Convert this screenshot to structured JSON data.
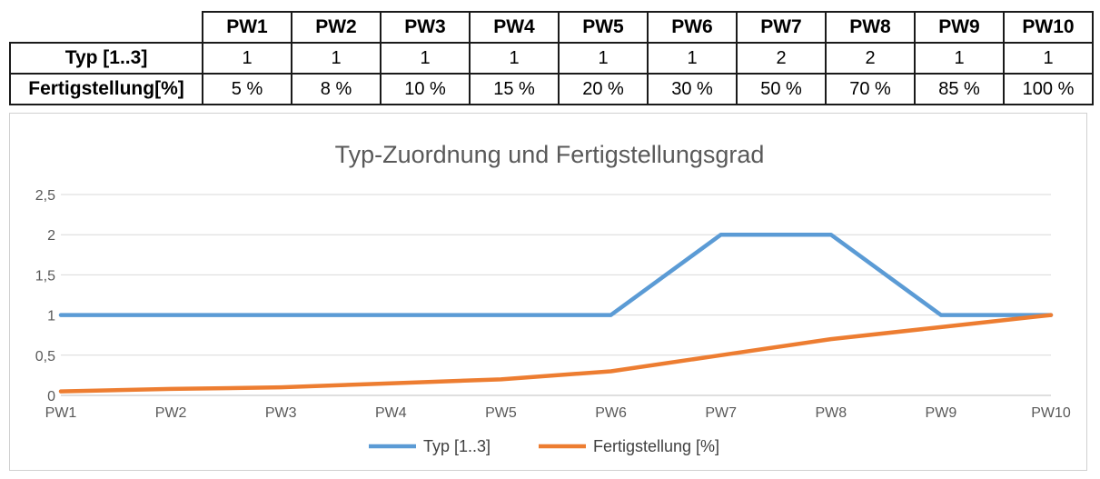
{
  "table": {
    "headers": [
      "PW1",
      "PW2",
      "PW3",
      "PW4",
      "PW5",
      "PW6",
      "PW7",
      "PW8",
      "PW9",
      "PW10"
    ],
    "rows": [
      {
        "label": "Typ [1..3]",
        "cells": [
          "1",
          "1",
          "1",
          "1",
          "1",
          "1",
          "2",
          "2",
          "1",
          "1"
        ]
      },
      {
        "label": "Fertigstellung[%]",
        "cells": [
          "5 %",
          "8 %",
          "10 %",
          "15 %",
          "20 %",
          "30 %",
          "50 %",
          "70 %",
          "85 %",
          "100 %"
        ]
      }
    ]
  },
  "chart_data": {
    "type": "line",
    "title": "Typ-Zuordnung und Fertigstellungsgrad",
    "categories": [
      "PW1",
      "PW2",
      "PW3",
      "PW4",
      "PW5",
      "PW6",
      "PW7",
      "PW8",
      "PW9",
      "PW10"
    ],
    "series": [
      {
        "name": "Typ [1..3]",
        "color": "#5b9bd5",
        "values": [
          1,
          1,
          1,
          1,
          1,
          1,
          2,
          2,
          1,
          1
        ]
      },
      {
        "name": "Fertigstellung [%]",
        "color": "#ed7d31",
        "values": [
          0.05,
          0.08,
          0.1,
          0.15,
          0.2,
          0.3,
          0.5,
          0.7,
          0.85,
          1.0
        ]
      }
    ],
    "ylim": [
      0,
      2.5
    ],
    "yticks": [
      "0",
      "0,5",
      "1",
      "1,5",
      "2",
      "2,5"
    ],
    "grid": true,
    "legend": "bottom"
  }
}
